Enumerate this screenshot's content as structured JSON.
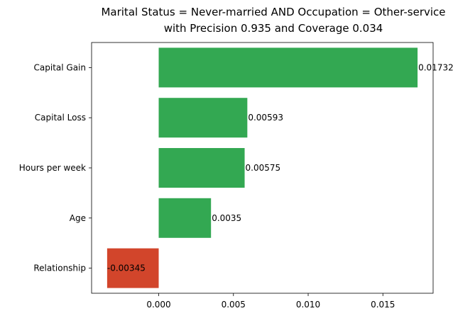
{
  "chart_data": {
    "type": "bar",
    "orientation": "horizontal",
    "title": [
      "Marital Status = Never-married AND Occupation = Other-service",
      "with Precision 0.935 and Coverage 0.034"
    ],
    "categories": [
      "Capital Gain",
      "Capital Loss",
      "Hours per week",
      "Age",
      "Relationship"
    ],
    "values": [
      0.01732,
      0.00593,
      0.00575,
      0.0035,
      -0.00345
    ],
    "value_labels": [
      "0.01732",
      "0.00593",
      "0.00575",
      "0.0035",
      "-0.00345"
    ],
    "x_ticks": [
      0.0,
      0.005,
      0.01,
      0.015
    ],
    "x_tick_labels": [
      "0.000",
      "0.005",
      "0.010",
      "0.015"
    ],
    "xlim": [
      -0.00449,
      0.01836
    ],
    "xlabel": "",
    "ylabel": "",
    "grid": false,
    "colors": {
      "positive": "#33a852",
      "negative": "#d2452b"
    }
  }
}
